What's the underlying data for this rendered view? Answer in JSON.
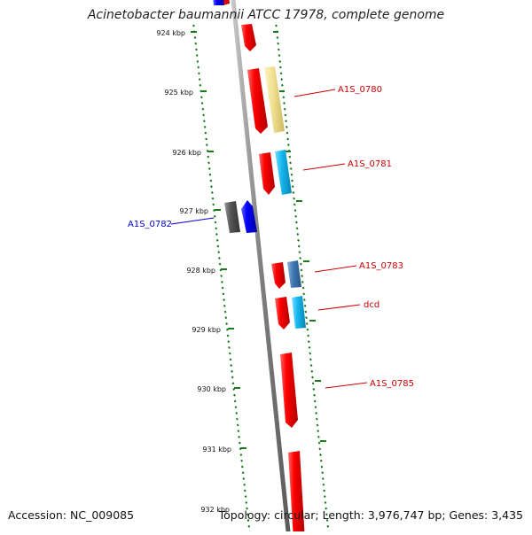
{
  "title": "Acinetobacter baumannii ATCC 17978, complete genome",
  "accession": "Accession: NC_009085",
  "topology": "Topology: circular; Length: 3,976,747 bp; Genes: 3,435",
  "colors": {
    "backbone": "#8a8a8a",
    "ruler": "#1a7a1a",
    "forward_gene": "#ff0000",
    "reverse_gene": "#0000ff",
    "label_red": "#cc0000",
    "label_blue": "#0000cc",
    "yellow_feature": "#f3e294",
    "cyan_feature": "#14b8f0",
    "steel_feature": "#3f78b5",
    "dark_feature": "#555555"
  },
  "ruler": {
    "ticks": [
      "924 kbp",
      "925 kbp",
      "926 kbp",
      "927 kbp",
      "928 kbp",
      "929 kbp",
      "930 kbp",
      "931 kbp",
      "932 kbp"
    ]
  },
  "labels": [
    {
      "text": "A1S_0780",
      "color": "red"
    },
    {
      "text": "A1S_0781",
      "color": "red"
    },
    {
      "text": "A1S_0782",
      "color": "blue"
    },
    {
      "text": "A1S_0783",
      "color": "red"
    },
    {
      "text": "dcd",
      "color": "red"
    },
    {
      "text": "A1S_0785",
      "color": "red"
    }
  ]
}
